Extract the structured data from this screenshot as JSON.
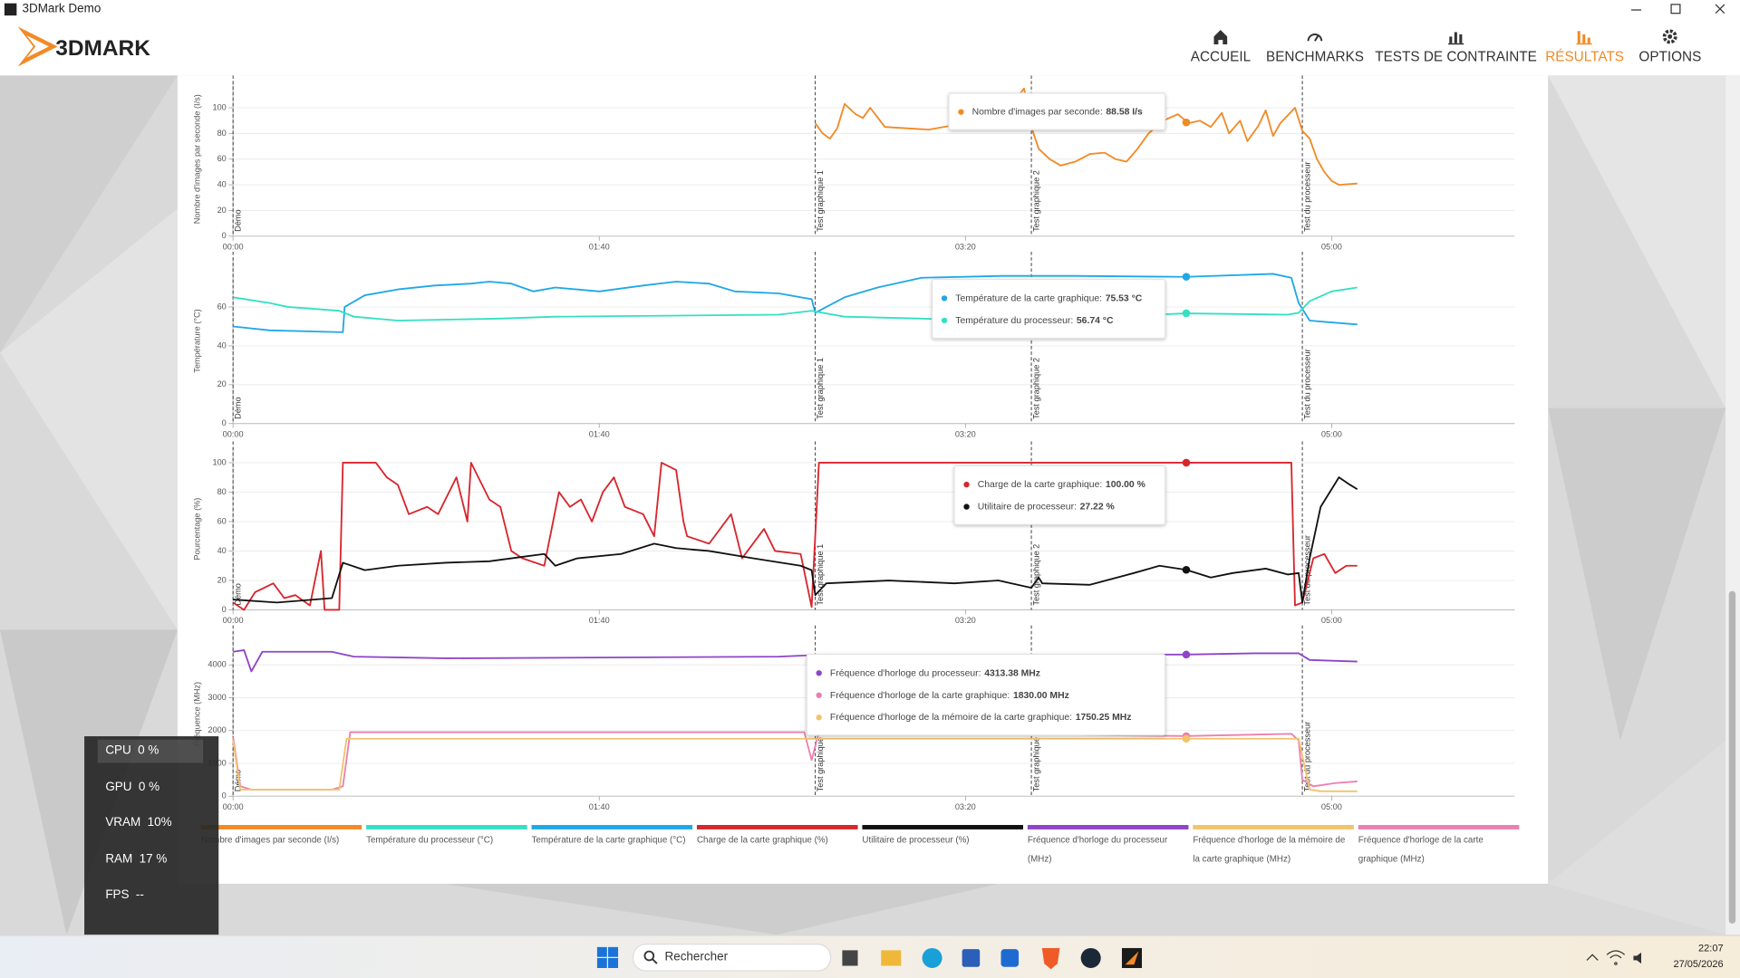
{
  "window": {
    "title": "3DMark Demo"
  },
  "header": {
    "logo": "3DMARK",
    "nav": [
      {
        "label": "ACCUEIL"
      },
      {
        "label": "BENCHMARKS"
      },
      {
        "label": "TESTS DE CONTRAINTE"
      },
      {
        "label": "RÉSULTATS",
        "active": true
      },
      {
        "label": "OPTIONS"
      }
    ]
  },
  "phases": [
    {
      "x": 0,
      "label": "Démo"
    },
    {
      "x": 159,
      "label": "Test graphique 1"
    },
    {
      "x": 218,
      "label": "Test graphique 2"
    },
    {
      "x": 292,
      "label": "Test du processeur"
    }
  ],
  "chart_data": [
    {
      "type": "line",
      "y_label": "Nombre d'images par seconde (I/s)",
      "xlim": [
        0,
        350
      ],
      "xticks": [
        {
          "value": 0,
          "label": "00:00"
        },
        {
          "value": 100,
          "label": "01:40"
        },
        {
          "value": 200,
          "label": "03:20"
        },
        {
          "value": 300,
          "label": "05:00"
        }
      ],
      "ylim": [
        0,
        120
      ],
      "yticks": [
        0,
        20,
        40,
        60,
        80,
        100
      ],
      "grid": true,
      "series": [
        {
          "color": "#f28a26",
          "tooltip_label": "Nombre d'images par seconde:",
          "tooltip_value": 88.58,
          "tooltip_text": "88.58 I/s",
          "hover_x": 260.3,
          "x": [
            159,
            161,
            163,
            165,
            167,
            170,
            172,
            174,
            178,
            184,
            190,
            196,
            200,
            205,
            212,
            216,
            218,
            220,
            223,
            226,
            230,
            234,
            238,
            241,
            244,
            247,
            250,
            254,
            258,
            261,
            264,
            267,
            270,
            272,
            275,
            277,
            280,
            282,
            284,
            286,
            290,
            292,
            294,
            296,
            298,
            300,
            302,
            307
          ],
          "values": [
            88,
            80,
            76,
            84,
            103,
            95,
            92,
            100,
            85,
            84,
            83,
            86,
            90,
            95,
            100,
            115,
            85,
            68,
            60,
            55,
            58,
            64,
            65,
            60,
            58,
            68,
            80,
            90,
            95,
            88,
            90,
            85,
            96,
            80,
            90,
            74,
            86,
            98,
            78,
            88,
            100,
            82,
            76,
            60,
            50,
            43,
            40,
            41
          ]
        }
      ]
    },
    {
      "type": "line",
      "y_label": "Température (°C)",
      "xlim": [
        0,
        350
      ],
      "xticks": [
        {
          "value": 0,
          "label": "00:00"
        },
        {
          "value": 100,
          "label": "01:40"
        },
        {
          "value": 200,
          "label": "03:20"
        },
        {
          "value": 300,
          "label": "05:00"
        }
      ],
      "ylim": [
        0,
        85
      ],
      "yticks": [
        0,
        20,
        40,
        60
      ],
      "grid": true,
      "series": [
        {
          "color": "#1fa8e6",
          "tooltip_label": "Température de la carte graphique:",
          "tooltip_value": 75.53,
          "tooltip_text": "75.53 °C",
          "hover_x": 260.3,
          "x": [
            0,
            10,
            30,
            30.5,
            36,
            45,
            55,
            65,
            70,
            76,
            82,
            88,
            100,
            112,
            121,
            130,
            137,
            149,
            158,
            159,
            167,
            176,
            188,
            210,
            230,
            260,
            284,
            289,
            291,
            294,
            300,
            307
          ],
          "values": [
            50,
            48,
            47,
            60,
            66,
            69,
            71,
            72,
            73,
            72,
            68,
            70,
            68,
            71,
            73,
            72,
            68,
            67,
            64,
            57,
            65,
            70,
            75,
            76,
            76,
            75.5,
            77,
            75,
            62,
            53,
            52,
            51
          ]
        },
        {
          "color": "#33e0c2",
          "tooltip_label": "Température du processeur:",
          "tooltip_value": 56.74,
          "tooltip_text": "56.74 °C",
          "hover_x": 260.3,
          "x": [
            0,
            10,
            15,
            29,
            33,
            45,
            73,
            88,
            149,
            158,
            167,
            188,
            218,
            240,
            260,
            288,
            291,
            294,
            300,
            307
          ],
          "values": [
            65,
            62,
            60,
            58,
            55,
            53,
            54,
            55,
            56,
            58,
            55,
            54,
            52,
            55,
            56.7,
            56,
            57,
            63,
            68,
            70
          ]
        }
      ]
    },
    {
      "type": "line",
      "y_label": "Pourcentage (%)",
      "xlim": [
        0,
        350
      ],
      "xticks": [
        {
          "value": 0,
          "label": "00:00"
        },
        {
          "value": 100,
          "label": "01:40"
        },
        {
          "value": 200,
          "label": "03:20"
        },
        {
          "value": 300,
          "label": "05:00"
        }
      ],
      "ylim": [
        0,
        110
      ],
      "yticks": [
        0,
        20,
        40,
        60,
        80,
        100
      ],
      "grid": true,
      "series": [
        {
          "color": "#d7262e",
          "tooltip_label": "Charge de la carte graphique:",
          "tooltip_value": 100,
          "tooltip_text": "100.00 %",
          "hover_x": 260.3,
          "x": [
            0,
            3,
            6,
            11,
            14,
            17,
            21,
            24,
            25,
            29,
            30,
            39,
            42,
            45,
            48,
            53,
            56,
            61,
            64,
            65,
            70,
            73,
            76,
            79,
            85,
            89,
            92,
            95,
            98,
            101,
            104,
            107,
            112,
            115,
            117,
            121,
            123,
            124,
            130,
            136,
            139,
            145,
            148,
            155,
            158,
            160,
            289,
            290,
            292,
            295,
            298,
            301,
            304,
            307
          ],
          "values": [
            5,
            0,
            12,
            18,
            8,
            10,
            3,
            40,
            0,
            0,
            100,
            100,
            90,
            85,
            65,
            70,
            65,
            90,
            60,
            100,
            75,
            70,
            40,
            35,
            30,
            80,
            70,
            75,
            60,
            80,
            90,
            70,
            65,
            50,
            100,
            95,
            60,
            50,
            45,
            65,
            35,
            55,
            40,
            38,
            2,
            100,
            100,
            3,
            5,
            35,
            38,
            25,
            30,
            30
          ]
        },
        {
          "color": "#111111",
          "tooltip_label": "Utilitaire de processeur:",
          "tooltip_value": 27.22,
          "tooltip_text": "27.22 %",
          "hover_x": 260.3,
          "x": [
            0,
            12,
            27,
            30,
            36,
            45,
            58,
            70,
            79,
            85,
            88,
            94,
            106,
            115,
            121,
            130,
            142,
            155,
            158,
            159,
            162,
            179,
            197,
            209,
            218,
            220,
            221,
            234,
            246,
            253,
            260.3,
            267,
            273,
            282,
            288,
            291,
            292,
            294,
            297,
            302,
            305,
            307
          ],
          "values": [
            7,
            5,
            8,
            32,
            27,
            30,
            32,
            33,
            36,
            38,
            30,
            35,
            38,
            45,
            42,
            40,
            35,
            30,
            27,
            10,
            18,
            20,
            18,
            20,
            15,
            22,
            18,
            17,
            25,
            30,
            27.2,
            22,
            25,
            28,
            24,
            25,
            5,
            35,
            70,
            90,
            85,
            82
          ]
        }
      ]
    },
    {
      "type": "line",
      "y_label": "Fréquence (MHz)",
      "xlim": [
        0,
        350
      ],
      "xticks": [
        {
          "value": 0,
          "label": "00:00"
        },
        {
          "value": 100,
          "label": "01:40"
        },
        {
          "value": 200,
          "label": "03:20"
        },
        {
          "value": 300,
          "label": "05:00"
        }
      ],
      "ylim": [
        0,
        5000
      ],
      "yticks": [
        0,
        1000,
        2000,
        3000,
        4000
      ],
      "grid": true,
      "series": [
        {
          "color": "#8e44c8",
          "tooltip_label": "Fréquence d'horloge du processeur:",
          "tooltip_value": 4313.38,
          "tooltip_text": "4313.38 MHz",
          "hover_x": 260.3,
          "x": [
            0,
            3,
            5,
            8,
            27,
            33,
            58,
            149,
            159,
            260.3,
            279,
            291,
            294,
            307
          ],
          "values": [
            4400,
            4450,
            3800,
            4400,
            4400,
            4250,
            4200,
            4250,
            4300,
            4313,
            4350,
            4350,
            4150,
            4100
          ]
        },
        {
          "color": "#ec7fae",
          "tooltip_label": "Fréquence d'horloge de la carte graphique:",
          "tooltip_value": 1830,
          "tooltip_text": "1830.00 MHz",
          "hover_x": 260.3,
          "x": [
            0,
            2,
            5,
            27,
            30,
            32,
            149,
            156,
            158,
            160,
            260.3,
            289,
            291,
            292,
            295,
            301,
            307
          ],
          "values": [
            1800,
            300,
            200,
            200,
            300,
            1950,
            1950,
            1950,
            1100,
            1950,
            1830,
            1900,
            1700,
            500,
            300,
            400,
            450
          ]
        },
        {
          "color": "#f2c36b",
          "tooltip_label": "Fréquence d'horloge de la mémoire de la carte graphique:",
          "tooltip_value": 1750.25,
          "tooltip_text": "1750.25 MHz",
          "hover_x": 260.3,
          "x": [
            0,
            2,
            29,
            31,
            289,
            291,
            294,
            297,
            307
          ],
          "values": [
            1700,
            200,
            200,
            1750,
            1750,
            1750,
            200,
            150,
            150
          ]
        }
      ]
    }
  ],
  "legend": [
    {
      "name": "Nombre d'images par seconde (I/s)",
      "color": "#f28a26"
    },
    {
      "name": "Température du processeur (°C)",
      "color": "#33e0c2"
    },
    {
      "name": "Température de la carte graphique (°C)",
      "color": "#1fa8e6"
    },
    {
      "name": "Charge de la carte graphique (%)",
      "color": "#d7262e"
    },
    {
      "name": "Utilitaire de processeur (%)",
      "color": "#111111"
    },
    {
      "name": "Fréquence d'horloge du processeur (MHz)",
      "color": "#8e44c8"
    },
    {
      "name": "Fréquence d'horloge de la mémoire de la carte graphique (MHz)",
      "color": "#f2c36b"
    },
    {
      "name": "Fréquence d'horloge de la carte graphique (MHz)",
      "color": "#ec7fae"
    }
  ],
  "overlay": [
    {
      "label": "CPU",
      "value": "0 %"
    },
    {
      "label": "GPU",
      "value": "0 %"
    },
    {
      "label": "VRAM",
      "value": "10%"
    },
    {
      "label": "RAM",
      "value": "17 %"
    },
    {
      "label": "FPS",
      "value": "--"
    }
  ],
  "taskbar": {
    "search": "Rechercher",
    "time": "22:07",
    "date": "27/05/2026"
  }
}
